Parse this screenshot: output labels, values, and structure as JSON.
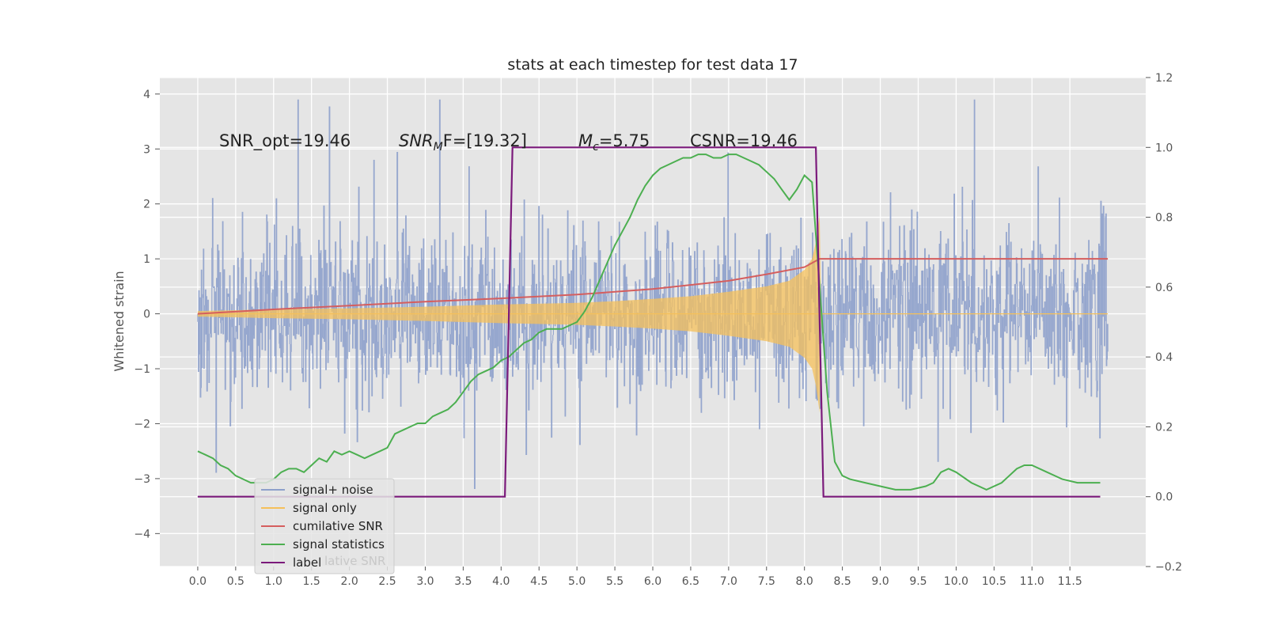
{
  "chart_data": {
    "type": "line",
    "title": "stats at each timestep for test data 17",
    "ylabel": "Whitened strain",
    "xlabel": "",
    "xlim": [
      -0.5,
      12.5
    ],
    "ylim": [
      -4.6,
      4.3
    ],
    "y2lim": [
      -0.2,
      1.2
    ],
    "grid": true,
    "x_ticks": [
      "0.0",
      "0.5",
      "1.0",
      "1.5",
      "2.0",
      "2.5",
      "3.0",
      "3.5",
      "4.0",
      "4.5",
      "5.0",
      "5.5",
      "6.0",
      "6.5",
      "7.0",
      "7.5",
      "8.0",
      "8.5",
      "9.0",
      "9.5",
      "10.0",
      "10.5",
      "11.0",
      "11.5"
    ],
    "y_ticks": [
      "4",
      "3",
      "2",
      "1",
      "0",
      "−1",
      "−2",
      "−3",
      "−4"
    ],
    "y2_ticks": [
      "1.2",
      "1.0",
      "0.8",
      "0.6",
      "0.4",
      "0.2",
      "0.0",
      "−0.2"
    ],
    "annotations": [
      "SNR_opt=19.46",
      "SNR",
      "M",
      "F=[19.32]",
      "M",
      "c",
      "=5.75",
      "CSNR=19.46"
    ],
    "legend": {
      "placement": "lower-left",
      "entries": [
        {
          "label": "signal+ noise",
          "color": "#8da0cb"
        },
        {
          "label": "signal only",
          "color": "#f5c05a"
        },
        {
          "label": "cumilative SNR",
          "color": "#d55e5e"
        },
        {
          "label": "signal statistics",
          "color": "#4caf50"
        },
        {
          "label": "label",
          "color": "#7b1a7b"
        }
      ],
      "ghost_text": "lative SNR"
    },
    "series": [
      {
        "name": "signal+ noise",
        "color": "#8da0cb",
        "x_range": [
          0.0,
          12.0
        ],
        "envelope": "noise",
        "approx_max": 3.9,
        "approx_min": -4.1
      },
      {
        "name": "signal only",
        "color": "#f5c05a",
        "x": [
          0.0,
          1.0,
          2.0,
          3.0,
          4.0,
          5.0,
          5.5,
          6.0,
          6.5,
          7.0,
          7.5,
          7.8,
          8.0,
          8.1,
          8.15,
          8.2,
          8.22,
          12.0
        ],
        "amplitude": [
          0.05,
          0.08,
          0.1,
          0.13,
          0.17,
          0.2,
          0.23,
          0.27,
          0.32,
          0.4,
          0.5,
          0.6,
          0.8,
          1.0,
          1.3,
          1.8,
          0.0,
          0.0
        ]
      },
      {
        "name": "cumilative SNR",
        "color": "#d55e5e",
        "x": [
          0.0,
          1.0,
          2.0,
          3.0,
          4.0,
          5.0,
          6.0,
          7.0,
          7.5,
          8.0,
          8.2,
          8.25,
          12.0
        ],
        "y": [
          0.0,
          0.08,
          0.15,
          0.22,
          0.28,
          0.35,
          0.45,
          0.6,
          0.72,
          0.85,
          1.0,
          1.0,
          1.0
        ]
      },
      {
        "name": "signal statistics",
        "axis": "right",
        "color": "#4caf50",
        "x": [
          0.0,
          0.1,
          0.2,
          0.3,
          0.4,
          0.5,
          0.6,
          0.7,
          0.8,
          0.9,
          1.0,
          1.1,
          1.2,
          1.3,
          1.4,
          1.5,
          1.6,
          1.7,
          1.8,
          1.9,
          2.0,
          2.1,
          2.2,
          2.3,
          2.4,
          2.5,
          2.6,
          2.7,
          2.8,
          2.9,
          3.0,
          3.1,
          3.2,
          3.3,
          3.4,
          3.5,
          3.6,
          3.7,
          3.8,
          3.9,
          4.0,
          4.1,
          4.2,
          4.3,
          4.4,
          4.5,
          4.6,
          4.7,
          4.8,
          4.9,
          5.0,
          5.1,
          5.2,
          5.3,
          5.4,
          5.5,
          5.6,
          5.7,
          5.8,
          5.9,
          6.0,
          6.1,
          6.2,
          6.3,
          6.4,
          6.5,
          6.6,
          6.7,
          6.8,
          6.9,
          7.0,
          7.1,
          7.2,
          7.3,
          7.4,
          7.5,
          7.6,
          7.7,
          7.8,
          7.9,
          8.0,
          8.1,
          8.2,
          8.3,
          8.4,
          8.5,
          8.6,
          8.8,
          9.0,
          9.2,
          9.4,
          9.6,
          9.7,
          9.8,
          9.9,
          10.0,
          10.2,
          10.4,
          10.6,
          10.8,
          10.9,
          11.0,
          11.2,
          11.4,
          11.6,
          11.8,
          11.9
        ],
        "y": [
          0.13,
          0.12,
          0.11,
          0.09,
          0.08,
          0.06,
          0.05,
          0.04,
          0.04,
          0.04,
          0.05,
          0.07,
          0.08,
          0.08,
          0.07,
          0.09,
          0.11,
          0.1,
          0.13,
          0.12,
          0.13,
          0.12,
          0.11,
          0.12,
          0.13,
          0.14,
          0.18,
          0.19,
          0.2,
          0.21,
          0.21,
          0.23,
          0.24,
          0.25,
          0.27,
          0.3,
          0.33,
          0.35,
          0.36,
          0.37,
          0.39,
          0.4,
          0.42,
          0.44,
          0.45,
          0.47,
          0.48,
          0.48,
          0.48,
          0.49,
          0.5,
          0.53,
          0.57,
          0.62,
          0.67,
          0.72,
          0.76,
          0.8,
          0.85,
          0.89,
          0.92,
          0.94,
          0.95,
          0.96,
          0.97,
          0.97,
          0.98,
          0.98,
          0.97,
          0.97,
          0.98,
          0.98,
          0.97,
          0.96,
          0.95,
          0.93,
          0.91,
          0.88,
          0.85,
          0.88,
          0.92,
          0.9,
          0.6,
          0.3,
          0.1,
          0.06,
          0.05,
          0.04,
          0.03,
          0.02,
          0.02,
          0.03,
          0.04,
          0.07,
          0.08,
          0.07,
          0.04,
          0.02,
          0.04,
          0.08,
          0.09,
          0.09,
          0.07,
          0.05,
          0.04,
          0.04,
          0.04
        ]
      },
      {
        "name": "label",
        "axis": "right",
        "color": "#7b1a7b",
        "x": [
          0.0,
          4.05,
          4.15,
          8.15,
          8.25,
          11.9
        ],
        "y": [
          0.0,
          0.0,
          1.0,
          1.0,
          0.0,
          0.0
        ]
      }
    ]
  }
}
